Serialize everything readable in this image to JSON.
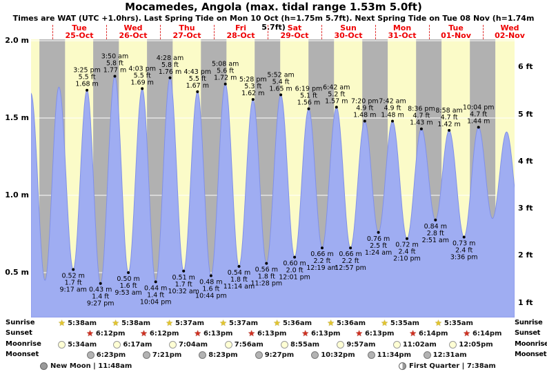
{
  "title": "Mocamedes, Angola (max. tidal range 1.53m 5.0ft)",
  "subtitle": "Times are WAT (UTC +1.0hrs). Last Spring Tide on Mon 10 Oct (h=1.75m 5.7ft). Next Spring Tide on Tue 08 Nov (h=1.74m 5.7ft)",
  "days": [
    {
      "name": "Tue",
      "date": "25-Oct"
    },
    {
      "name": "Wed",
      "date": "26-Oct"
    },
    {
      "name": "Thu",
      "date": "27-Oct"
    },
    {
      "name": "Fri",
      "date": "28-Oct"
    },
    {
      "name": "Sat",
      "date": "29-Oct"
    },
    {
      "name": "Sun",
      "date": "30-Oct"
    },
    {
      "name": "Mon",
      "date": "31-Oct"
    },
    {
      "name": "Tue",
      "date": "01-Nov"
    },
    {
      "name": "Wed",
      "date": "02-Nov"
    }
  ],
  "axis": {
    "left_m": [
      "2.0 m",
      "1.5 m",
      "1.0 m",
      "0.5 m"
    ],
    "left_values": [
      2.0,
      1.5,
      1.0,
      0.5
    ],
    "right_ft": [
      "6 ft",
      "5 ft",
      "4 ft",
      "3 ft",
      "2 ft",
      "1 ft"
    ],
    "right_values": [
      6,
      5,
      4,
      3,
      2,
      1
    ]
  },
  "chart_data": {
    "type": "area",
    "title": "Tide height curve for Mocamedes, Angola",
    "units_primary": "m",
    "units_secondary": "ft",
    "max_tidal_range_m": 1.53,
    "max_tidal_range_ft": 5.0,
    "x_range": [
      "Tue 25-Oct",
      "Wed 02-Nov"
    ],
    "tide_events": [
      {
        "t": 9.283,
        "time": "9:17 am",
        "m": 0.52,
        "ft": 1.7,
        "kind": "low"
      },
      {
        "t": 15.417,
        "time": "3:25 pm",
        "m": 1.68,
        "ft": 5.5,
        "kind": "high"
      },
      {
        "t": 21.45,
        "time": "9:27 pm",
        "m": 0.43,
        "ft": 1.4,
        "kind": "low"
      },
      {
        "t": 27.833,
        "time": "3:50 am",
        "m": 1.77,
        "ft": 5.8,
        "kind": "high"
      },
      {
        "t": 33.883,
        "time": "9:53 am",
        "m": 0.5,
        "ft": 1.6,
        "kind": "low"
      },
      {
        "t": 40.05,
        "time": "4:03 pm",
        "m": 1.69,
        "ft": 5.5,
        "kind": "high"
      },
      {
        "t": 46.067,
        "time": "10:04 pm",
        "m": 0.44,
        "ft": 1.4,
        "kind": "low"
      },
      {
        "t": 52.467,
        "time": "4:28 am",
        "m": 1.76,
        "ft": 5.8,
        "kind": "high"
      },
      {
        "t": 58.533,
        "time": "10:32 am",
        "m": 0.51,
        "ft": 1.7,
        "kind": "low"
      },
      {
        "t": 64.717,
        "time": "4:43 pm",
        "m": 1.67,
        "ft": 5.5,
        "kind": "high"
      },
      {
        "t": 70.733,
        "time": "10:44 pm",
        "m": 0.48,
        "ft": 1.6,
        "kind": "low"
      },
      {
        "t": 77.133,
        "time": "5:08 am",
        "m": 1.72,
        "ft": 5.6,
        "kind": "high"
      },
      {
        "t": 83.233,
        "time": "11:14 am",
        "m": 0.54,
        "ft": 1.8,
        "kind": "low"
      },
      {
        "t": 89.467,
        "time": "5:28 pm",
        "m": 1.62,
        "ft": 5.3,
        "kind": "high"
      },
      {
        "t": 95.467,
        "time": "11:28 pm",
        "m": 0.56,
        "ft": 1.8,
        "kind": "low"
      },
      {
        "t": 101.867,
        "time": "5:52 am",
        "m": 1.65,
        "ft": 5.4,
        "kind": "high"
      },
      {
        "t": 108.017,
        "time": "12:01 pm",
        "m": 0.6,
        "ft": 2.0,
        "kind": "low"
      },
      {
        "t": 114.317,
        "time": "6:19 pm",
        "m": 1.56,
        "ft": 5.1,
        "kind": "high"
      },
      {
        "t": 120.317,
        "time": "12:19 am",
        "m": 0.66,
        "ft": 2.2,
        "kind": "low"
      },
      {
        "t": 126.7,
        "time": "6:42 am",
        "m": 1.57,
        "ft": 5.2,
        "kind": "high"
      },
      {
        "t": 132.95,
        "time": "12:57 pm",
        "m": 0.66,
        "ft": 2.2,
        "kind": "low"
      },
      {
        "t": 139.333,
        "time": "7:20 pm",
        "m": 1.48,
        "ft": 4.9,
        "kind": "high"
      },
      {
        "t": 145.4,
        "time": "1:24 am",
        "m": 0.76,
        "ft": 2.5,
        "kind": "low"
      },
      {
        "t": 151.7,
        "time": "7:42 am",
        "m": 1.48,
        "ft": 4.9,
        "kind": "high"
      },
      {
        "t": 158.167,
        "time": "2:10 pm",
        "m": 0.72,
        "ft": 2.4,
        "kind": "low"
      },
      {
        "t": 164.6,
        "time": "8:36 pm",
        "m": 1.43,
        "ft": 4.7,
        "kind": "high"
      },
      {
        "t": 170.85,
        "time": "2:51 am",
        "m": 0.84,
        "ft": 2.8,
        "kind": "low"
      },
      {
        "t": 176.967,
        "time": "8:58 am",
        "m": 1.42,
        "ft": 4.7,
        "kind": "high"
      },
      {
        "t": 183.6,
        "time": "3:36 pm",
        "m": 0.73,
        "ft": 2.4,
        "kind": "low"
      },
      {
        "t": 190.067,
        "time": "10:04 pm",
        "m": 1.44,
        "ft": 4.7,
        "kind": "high"
      }
    ],
    "edge_events": [
      {
        "t": -9.6,
        "m": 1.66,
        "kind": "high"
      },
      {
        "t": -3.3,
        "m": 0.45,
        "kind": "low"
      },
      {
        "t": 2.9,
        "m": 1.7,
        "kind": "high"
      },
      {
        "t": 196.3,
        "m": 0.85,
        "kind": "low"
      },
      {
        "t": 202.6,
        "m": 1.41,
        "kind": "high"
      },
      {
        "t": 208.9,
        "m": 0.8,
        "kind": "low"
      }
    ],
    "colors": {
      "day_band": "#fbfbc8",
      "night_band": "#b1b1b1",
      "tide_fill": "#9fadf2",
      "tide_stroke": "#8090e8",
      "grid": "#ffffff",
      "day_label": "#ee0000"
    }
  },
  "astro": {
    "sunrise": {
      "label": "Sunrise",
      "times": [
        "5:38am",
        "5:38am",
        "5:37am",
        "5:37am",
        "5:36am",
        "5:36am",
        "5:35am",
        "5:35am"
      ]
    },
    "sunset": {
      "label": "Sunset",
      "times": [
        "6:12pm",
        "6:12pm",
        "6:13pm",
        "6:13pm",
        "6:13pm",
        "6:13pm",
        "6:14pm",
        "6:14pm"
      ]
    },
    "moonrise": {
      "label": "Moonrise",
      "times": [
        "5:34am",
        "6:17am",
        "7:04am",
        "7:56am",
        "8:55am",
        "9:57am",
        "11:02am",
        "12:05pm"
      ]
    },
    "moonset": {
      "label": "Moonset",
      "entries": [
        {
          "day": 0,
          "time": "6:23pm"
        },
        {
          "day": 1,
          "time": "7:21pm"
        },
        {
          "day": 2,
          "time": "8:23pm"
        },
        {
          "day": 3,
          "time": "9:27pm"
        },
        {
          "day": 4,
          "time": "10:32pm"
        },
        {
          "day": 5,
          "time": "11:34pm"
        },
        {
          "day": 7,
          "time": "12:31am"
        }
      ]
    },
    "phases": [
      {
        "label": "New Moon",
        "time": "11:48am",
        "text": "New Moon | 11:48am"
      },
      {
        "label": "First Quarter",
        "time": "7:38am",
        "text": "First Quarter | 7:38am"
      }
    ]
  }
}
